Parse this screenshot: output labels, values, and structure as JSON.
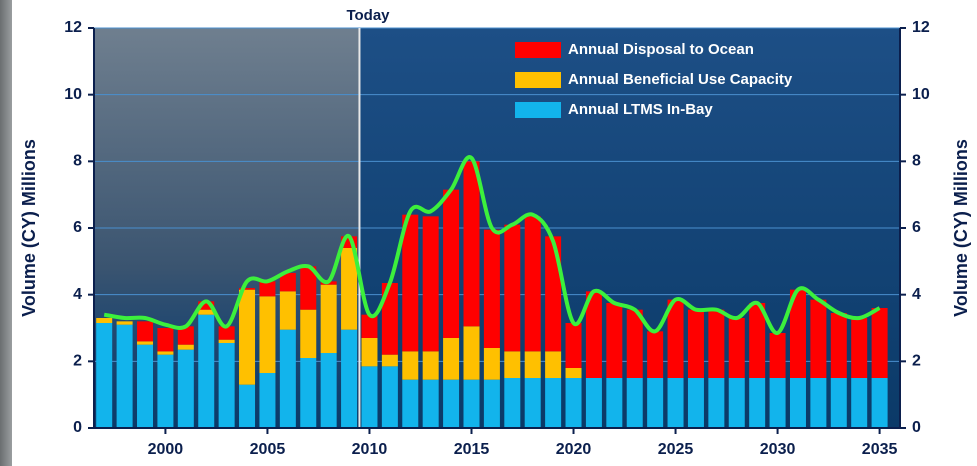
{
  "chart_data": {
    "type": "stacked_bar",
    "annotation": "Today",
    "annotation_x": 2010,
    "ylabel": "Volume (CY) Millions",
    "y2label": "Volume (CY) Millions",
    "x": [
      1997,
      1998,
      1999,
      2000,
      2001,
      2002,
      2003,
      2004,
      2005,
      2006,
      2007,
      2008,
      2009,
      2010,
      2011,
      2012,
      2013,
      2014,
      2015,
      2016,
      2017,
      2018,
      2019,
      2020,
      2021,
      2022,
      2023,
      2024,
      2025,
      2026,
      2027,
      2028,
      2029,
      2030,
      2031,
      2032,
      2033,
      2034,
      2035
    ],
    "series": [
      {
        "name": "Annual LTMS In-Bay",
        "color": "#12b4ec",
        "values": [
          3.15,
          3.1,
          2.5,
          2.2,
          2.35,
          3.4,
          2.55,
          1.3,
          1.65,
          2.95,
          2.1,
          2.25,
          2.95,
          1.85,
          1.85,
          1.45,
          1.45,
          1.45,
          1.45,
          1.45,
          1.5,
          1.5,
          1.5,
          1.5,
          1.5,
          1.5,
          1.5,
          1.5,
          1.5,
          1.5,
          1.5,
          1.5,
          1.5,
          1.5,
          1.5,
          1.5,
          1.5,
          1.5,
          1.5
        ]
      },
      {
        "name": "Annual Beneficial Use Capacity",
        "color": "#ffc000",
        "values": [
          0.15,
          0.1,
          0.1,
          0.1,
          0.15,
          0.15,
          0.1,
          2.85,
          2.3,
          1.15,
          1.45,
          2.05,
          2.45,
          0.85,
          0.35,
          0.85,
          0.85,
          1.25,
          1.6,
          0.95,
          0.8,
          0.8,
          0.8,
          0.3,
          0,
          0,
          0,
          0,
          0,
          0,
          0,
          0,
          0,
          0,
          0,
          0,
          0,
          0,
          0
        ]
      },
      {
        "name": "Annual Disposal to Ocean",
        "color": "#ff0000",
        "values": [
          0,
          0,
          0.6,
          0.7,
          0.55,
          0.25,
          0.4,
          0.05,
          0.45,
          0.55,
          1.3,
          0.1,
          0.35,
          0.7,
          2.15,
          4.1,
          4.05,
          4.45,
          4.95,
          3.55,
          3.8,
          4.05,
          3.45,
          1.35,
          2.6,
          2.25,
          2.05,
          1.4,
          2.35,
          2.05,
          2.05,
          1.8,
          2.25,
          1.35,
          2.65,
          2.35,
          1.95,
          1.8,
          2.1
        ]
      }
    ],
    "line": {
      "color": "#3cf03c",
      "values": [
        3.4,
        3.3,
        3.3,
        3.1,
        3.05,
        3.8,
        3.05,
        4.4,
        4.4,
        4.7,
        4.85,
        4.4,
        5.75,
        3.4,
        4.35,
        6.5,
        6.5,
        7.15,
        8.1,
        6.0,
        6.1,
        6.4,
        5.6,
        3.15,
        4.1,
        3.75,
        3.55,
        2.9,
        3.85,
        3.55,
        3.55,
        3.3,
        3.75,
        2.85,
        4.15,
        3.85,
        3.45,
        3.3,
        3.6
      ]
    },
    "xlim": [
      1996.5,
      2036
    ],
    "xticks": [
      2000,
      2005,
      2010,
      2015,
      2020,
      2025,
      2030,
      2035
    ],
    "ylim": [
      0,
      12
    ],
    "yticks": [
      0,
      2,
      4,
      6,
      8,
      10,
      12
    ],
    "y2lim": [
      0,
      12
    ],
    "y2ticks": [
      0,
      2,
      4,
      6,
      8,
      10,
      12
    ],
    "grid": true,
    "legend": "upper right"
  }
}
